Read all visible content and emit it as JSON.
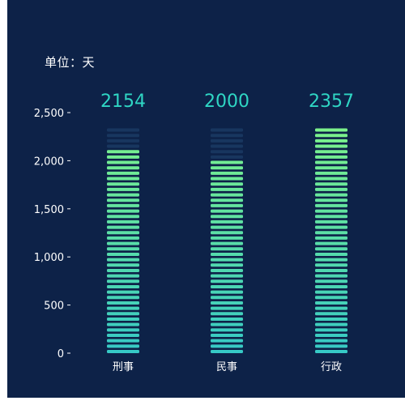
{
  "unit_label": "单位：天",
  "chart_data": {
    "type": "bar",
    "categories": [
      "刑事",
      "民事",
      "行政"
    ],
    "values": [
      2154,
      2000,
      2357
    ],
    "data_labels": [
      "2154",
      "2000",
      "2357"
    ],
    "ylim": [
      0,
      2500
    ],
    "yticks": [
      0,
      500,
      1000,
      1500,
      2000,
      2500
    ],
    "ytick_labels": [
      "0",
      "500",
      "1,000",
      "1,500",
      "2,000",
      "2,500"
    ],
    "background_max": 2357,
    "grid": false,
    "colors": {
      "bar_top": "#7df38a",
      "bar_bottom": "#36c9c6",
      "bar_bg": "#1b3a64",
      "data_label": "#2fd6c4",
      "background": "#0d2248"
    }
  }
}
